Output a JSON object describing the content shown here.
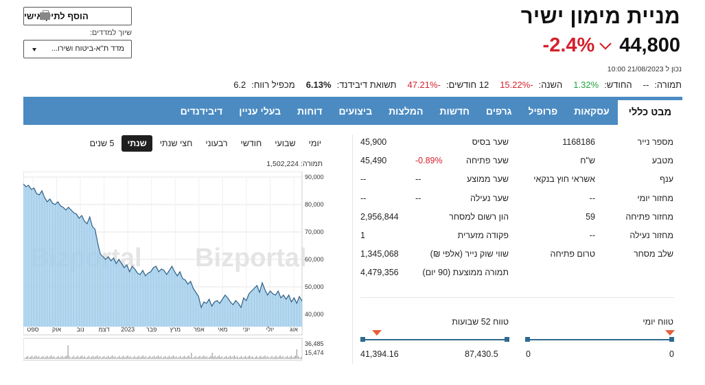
{
  "header": {
    "title": "מניית מימון ישיר",
    "price": "44,800",
    "change": "-2.4%",
    "updated": "נכון ל 21/08/2023 10:00",
    "add_button": "הוסף לתיק אישי",
    "index_label": "שיוך למדדים:",
    "index_selected": "מדד ת\"א-ביטוח ושירו..."
  },
  "stats": [
    {
      "label": "תמורה:",
      "value": "--",
      "color": ""
    },
    {
      "label": "החודש:",
      "value": "1.32%",
      "color": "green"
    },
    {
      "label": "השנה:",
      "value": "-15.22%",
      "color": "red"
    },
    {
      "label": "12 חודשים:",
      "value": "-47.21%",
      "color": "red"
    },
    {
      "label": "תשואת דיבידנד:",
      "value": "6.13%",
      "color": "bold"
    },
    {
      "label": "מכפיל רווח:",
      "value": "6.2",
      "color": ""
    }
  ],
  "tabs": [
    {
      "label": "מבט כללי",
      "active": true
    },
    {
      "label": "עסקאות"
    },
    {
      "label": "פרופיל"
    },
    {
      "label": "גרפים"
    },
    {
      "label": "חדשות"
    },
    {
      "label": "המלצות"
    },
    {
      "label": "ביצועים"
    },
    {
      "label": "דוחות"
    },
    {
      "label": "בעלי עניין"
    },
    {
      "label": "דיבידנדים"
    }
  ],
  "periods": [
    {
      "label": "יומי"
    },
    {
      "label": "שבועי"
    },
    {
      "label": "חודשי"
    },
    {
      "label": "רבעוני"
    },
    {
      "label": "חצי שנתי"
    },
    {
      "label": "שנתי",
      "active": true
    },
    {
      "label": "5 שנים"
    }
  ],
  "chart": {
    "volume_text": "תמורה: 1,502,224",
    "watermark": "Bizportal",
    "volume_ticks": [
      "36,485",
      "15,474"
    ]
  },
  "chart_data": {
    "type": "area",
    "ylim": [
      40000,
      90000
    ],
    "yticks": [
      "90,000",
      "80,000",
      "70,000",
      "60,000",
      "50,000",
      "40,000"
    ],
    "xticks": [
      "ספט",
      "אוק",
      "נוב",
      "דצמ",
      "2023",
      "פבר",
      "מרץ",
      "אפר",
      "מאי",
      "יוני",
      "יולי",
      "אוג"
    ],
    "series": [
      {
        "values": [
          87500,
          86500,
          87000,
          85500,
          86000,
          84000,
          83500,
          85000,
          82500,
          81000,
          82000,
          80500,
          80000,
          81000,
          79500,
          79000,
          78000,
          79000,
          78000,
          77000,
          76500,
          75000,
          76000,
          74000,
          73000,
          75500,
          72000,
          71000,
          66000,
          62000,
          61000,
          60000,
          61000,
          59500,
          60500,
          58500,
          60000,
          58500,
          57000,
          58000,
          55500,
          57500,
          56500,
          55000,
          54500,
          56000,
          54000,
          55000,
          55500,
          57000,
          57500,
          55500,
          56500,
          56000,
          54500,
          56000,
          57500,
          55500,
          54000,
          55500,
          53000,
          52500,
          51000,
          52000,
          49500,
          48000,
          46500,
          42500,
          44500,
          44000,
          45500,
          43000,
          44500,
          45000,
          44000,
          45500,
          47000,
          46000,
          44500,
          43500,
          45000,
          44000,
          42500,
          46000,
          45000,
          47500,
          48500,
          49500,
          50500,
          48000,
          51500,
          49000,
          47000,
          48500,
          47500,
          47000,
          48500,
          46000,
          47000,
          45500,
          47000,
          44500,
          46000,
          44000,
          46500,
          44800
        ]
      }
    ]
  },
  "details_col1": [
    {
      "label": "מספר נייר",
      "value": "1168186"
    },
    {
      "label": "מטבע",
      "value": "ש\"ח"
    },
    {
      "label": "ענף",
      "value": "אשראי חוץ בנקאי"
    },
    {
      "label": "מחזור יומי",
      "value": "--"
    },
    {
      "label": "מחזור פתיחה",
      "value": "59"
    },
    {
      "label": "מחזור נעילה",
      "value": "--"
    },
    {
      "label": "שלב מסחר",
      "value": "טרום פתיחה"
    }
  ],
  "details_col2": [
    {
      "label": "שער בסיס",
      "value": "45,900",
      "extra": ""
    },
    {
      "label": "שער פתיחה",
      "value": "45,490",
      "extra": "-0.89%"
    },
    {
      "label": "שער ממוצע",
      "value": "--",
      "extra": "--"
    },
    {
      "label": "שער נעילה",
      "value": "--",
      "extra": "--"
    },
    {
      "label": "הון רשום למסחר",
      "value": "2,956,844",
      "extra": ""
    },
    {
      "label": "פקודה מזערית",
      "value": "1",
      "extra": ""
    },
    {
      "label": "שווי שוק נייר (אלפי ₪)",
      "value": "1,345,068",
      "extra": ""
    },
    {
      "label": "תמורה ממוצעת (90 יום)",
      "value": "4,479,356",
      "extra": ""
    }
  ],
  "ranges": {
    "daily": {
      "title": "טווח יומי",
      "low": "0",
      "high": "0"
    },
    "weekly52": {
      "title": "טווח 52 שבועות",
      "low": "41,394.16",
      "high": "87,430.5"
    }
  },
  "colors": {
    "tab_bar": "#4b8bc2",
    "negative": "#d4212d",
    "positive": "#22a23b",
    "range_bar": "#2f6a8e",
    "range_marker": "#e5603a",
    "area_fill": "#a9d1ec"
  }
}
